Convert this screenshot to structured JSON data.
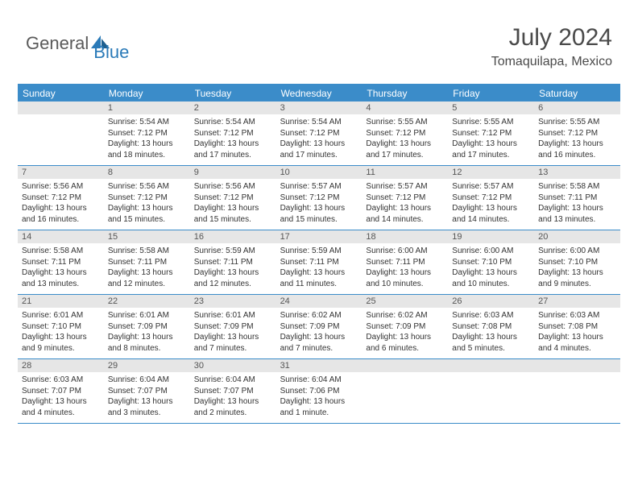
{
  "logo": {
    "part1": "General",
    "part2": "Blue"
  },
  "header": {
    "title": "July 2024",
    "subtitle": "Tomaquilapa, Mexico"
  },
  "colors": {
    "header_blue": "#3b8cc9",
    "date_bg": "#e6e6e6",
    "text_dark": "#333333",
    "text_gray": "#4a4a4a",
    "logo_blue": "#2a7ab8"
  },
  "dayNames": [
    "Sunday",
    "Monday",
    "Tuesday",
    "Wednesday",
    "Thursday",
    "Friday",
    "Saturday"
  ],
  "weeks": [
    [
      {
        "date": "",
        "lines": []
      },
      {
        "date": "1",
        "lines": [
          "Sunrise: 5:54 AM",
          "Sunset: 7:12 PM",
          "Daylight: 13 hours and 18 minutes."
        ]
      },
      {
        "date": "2",
        "lines": [
          "Sunrise: 5:54 AM",
          "Sunset: 7:12 PM",
          "Daylight: 13 hours and 17 minutes."
        ]
      },
      {
        "date": "3",
        "lines": [
          "Sunrise: 5:54 AM",
          "Sunset: 7:12 PM",
          "Daylight: 13 hours and 17 minutes."
        ]
      },
      {
        "date": "4",
        "lines": [
          "Sunrise: 5:55 AM",
          "Sunset: 7:12 PM",
          "Daylight: 13 hours and 17 minutes."
        ]
      },
      {
        "date": "5",
        "lines": [
          "Sunrise: 5:55 AM",
          "Sunset: 7:12 PM",
          "Daylight: 13 hours and 17 minutes."
        ]
      },
      {
        "date": "6",
        "lines": [
          "Sunrise: 5:55 AM",
          "Sunset: 7:12 PM",
          "Daylight: 13 hours and 16 minutes."
        ]
      }
    ],
    [
      {
        "date": "7",
        "lines": [
          "Sunrise: 5:56 AM",
          "Sunset: 7:12 PM",
          "Daylight: 13 hours and 16 minutes."
        ]
      },
      {
        "date": "8",
        "lines": [
          "Sunrise: 5:56 AM",
          "Sunset: 7:12 PM",
          "Daylight: 13 hours and 15 minutes."
        ]
      },
      {
        "date": "9",
        "lines": [
          "Sunrise: 5:56 AM",
          "Sunset: 7:12 PM",
          "Daylight: 13 hours and 15 minutes."
        ]
      },
      {
        "date": "10",
        "lines": [
          "Sunrise: 5:57 AM",
          "Sunset: 7:12 PM",
          "Daylight: 13 hours and 15 minutes."
        ]
      },
      {
        "date": "11",
        "lines": [
          "Sunrise: 5:57 AM",
          "Sunset: 7:12 PM",
          "Daylight: 13 hours and 14 minutes."
        ]
      },
      {
        "date": "12",
        "lines": [
          "Sunrise: 5:57 AM",
          "Sunset: 7:12 PM",
          "Daylight: 13 hours and 14 minutes."
        ]
      },
      {
        "date": "13",
        "lines": [
          "Sunrise: 5:58 AM",
          "Sunset: 7:11 PM",
          "Daylight: 13 hours and 13 minutes."
        ]
      }
    ],
    [
      {
        "date": "14",
        "lines": [
          "Sunrise: 5:58 AM",
          "Sunset: 7:11 PM",
          "Daylight: 13 hours and 13 minutes."
        ]
      },
      {
        "date": "15",
        "lines": [
          "Sunrise: 5:58 AM",
          "Sunset: 7:11 PM",
          "Daylight: 13 hours and 12 minutes."
        ]
      },
      {
        "date": "16",
        "lines": [
          "Sunrise: 5:59 AM",
          "Sunset: 7:11 PM",
          "Daylight: 13 hours and 12 minutes."
        ]
      },
      {
        "date": "17",
        "lines": [
          "Sunrise: 5:59 AM",
          "Sunset: 7:11 PM",
          "Daylight: 13 hours and 11 minutes."
        ]
      },
      {
        "date": "18",
        "lines": [
          "Sunrise: 6:00 AM",
          "Sunset: 7:11 PM",
          "Daylight: 13 hours and 10 minutes."
        ]
      },
      {
        "date": "19",
        "lines": [
          "Sunrise: 6:00 AM",
          "Sunset: 7:10 PM",
          "Daylight: 13 hours and 10 minutes."
        ]
      },
      {
        "date": "20",
        "lines": [
          "Sunrise: 6:00 AM",
          "Sunset: 7:10 PM",
          "Daylight: 13 hours and 9 minutes."
        ]
      }
    ],
    [
      {
        "date": "21",
        "lines": [
          "Sunrise: 6:01 AM",
          "Sunset: 7:10 PM",
          "Daylight: 13 hours and 9 minutes."
        ]
      },
      {
        "date": "22",
        "lines": [
          "Sunrise: 6:01 AM",
          "Sunset: 7:09 PM",
          "Daylight: 13 hours and 8 minutes."
        ]
      },
      {
        "date": "23",
        "lines": [
          "Sunrise: 6:01 AM",
          "Sunset: 7:09 PM",
          "Daylight: 13 hours and 7 minutes."
        ]
      },
      {
        "date": "24",
        "lines": [
          "Sunrise: 6:02 AM",
          "Sunset: 7:09 PM",
          "Daylight: 13 hours and 7 minutes."
        ]
      },
      {
        "date": "25",
        "lines": [
          "Sunrise: 6:02 AM",
          "Sunset: 7:09 PM",
          "Daylight: 13 hours and 6 minutes."
        ]
      },
      {
        "date": "26",
        "lines": [
          "Sunrise: 6:03 AM",
          "Sunset: 7:08 PM",
          "Daylight: 13 hours and 5 minutes."
        ]
      },
      {
        "date": "27",
        "lines": [
          "Sunrise: 6:03 AM",
          "Sunset: 7:08 PM",
          "Daylight: 13 hours and 4 minutes."
        ]
      }
    ],
    [
      {
        "date": "28",
        "lines": [
          "Sunrise: 6:03 AM",
          "Sunset: 7:07 PM",
          "Daylight: 13 hours and 4 minutes."
        ]
      },
      {
        "date": "29",
        "lines": [
          "Sunrise: 6:04 AM",
          "Sunset: 7:07 PM",
          "Daylight: 13 hours and 3 minutes."
        ]
      },
      {
        "date": "30",
        "lines": [
          "Sunrise: 6:04 AM",
          "Sunset: 7:07 PM",
          "Daylight: 13 hours and 2 minutes."
        ]
      },
      {
        "date": "31",
        "lines": [
          "Sunrise: 6:04 AM",
          "Sunset: 7:06 PM",
          "Daylight: 13 hours and 1 minute."
        ]
      },
      {
        "date": "",
        "lines": []
      },
      {
        "date": "",
        "lines": []
      },
      {
        "date": "",
        "lines": []
      }
    ]
  ]
}
